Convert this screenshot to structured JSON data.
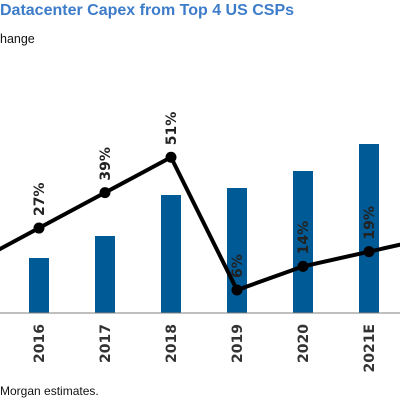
{
  "header": {
    "title": "Datacenter Capex from Top 4 US CSPs",
    "subtitle": "hange"
  },
  "footer": {
    "source": "Morgan estimates."
  },
  "chart_data": {
    "type": "bar",
    "categories": [
      "2016",
      "2017",
      "2018",
      "2019",
      "2020",
      "2021E"
    ],
    "series": [
      {
        "type": "bar",
        "values": [
          55,
          77,
          118,
          125,
          142,
          169
        ],
        "color": "#005a96"
      },
      {
        "type": "line",
        "values": [
          27,
          39,
          51,
          6,
          14,
          19
        ],
        "color": "#000000",
        "labels": [
          "27%",
          "39%",
          "51%",
          "6%",
          "14%",
          "19%"
        ]
      }
    ],
    "colors": {
      "bar": "#005a96",
      "line": "#000000"
    }
  }
}
